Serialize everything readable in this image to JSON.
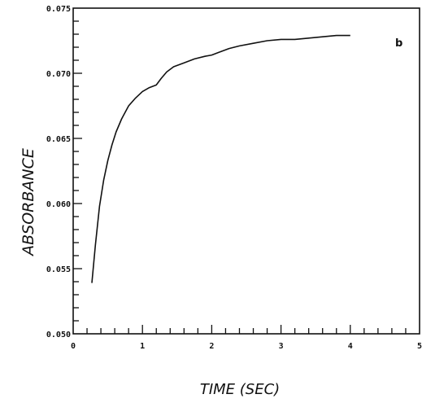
{
  "chart_data": {
    "type": "line",
    "title": "",
    "panel_label": "b",
    "xlabel": "TIME (SEC)",
    "ylabel": "ABSORBANCE",
    "xlim": [
      0,
      5
    ],
    "ylim": [
      0.05,
      0.075
    ],
    "x_ticks": [
      0,
      1,
      2,
      3,
      4,
      5
    ],
    "x_tick_labels": [
      "0",
      "1",
      "2",
      "3",
      "4",
      "5"
    ],
    "x_minor_step": 0.2,
    "y_ticks": [
      0.05,
      0.055,
      0.06,
      0.065,
      0.07,
      0.075
    ],
    "y_tick_labels": [
      "0.050",
      "0.055",
      "0.060",
      "0.065",
      "0.070",
      "0.075"
    ],
    "y_minor_step": 0.001,
    "grid": false,
    "series": [
      {
        "x": [
          0.27,
          0.32,
          0.38,
          0.44,
          0.5,
          0.56,
          0.62,
          0.7,
          0.8,
          0.9,
          1.0,
          1.1,
          1.2,
          1.27,
          1.35,
          1.45,
          1.6,
          1.75,
          1.9,
          2.0,
          2.1,
          2.25,
          2.4,
          2.6,
          2.8,
          3.0,
          3.2,
          3.4,
          3.6,
          3.8,
          4.0
        ],
        "y": [
          0.0539,
          0.0568,
          0.0598,
          0.0618,
          0.0633,
          0.0645,
          0.0655,
          0.0665,
          0.0675,
          0.0681,
          0.0686,
          0.0689,
          0.0691,
          0.0696,
          0.0701,
          0.0705,
          0.0708,
          0.0711,
          0.0713,
          0.0714,
          0.0716,
          0.0719,
          0.0721,
          0.0723,
          0.0725,
          0.0726,
          0.0726,
          0.0727,
          0.0728,
          0.0729,
          0.0729
        ]
      }
    ]
  }
}
